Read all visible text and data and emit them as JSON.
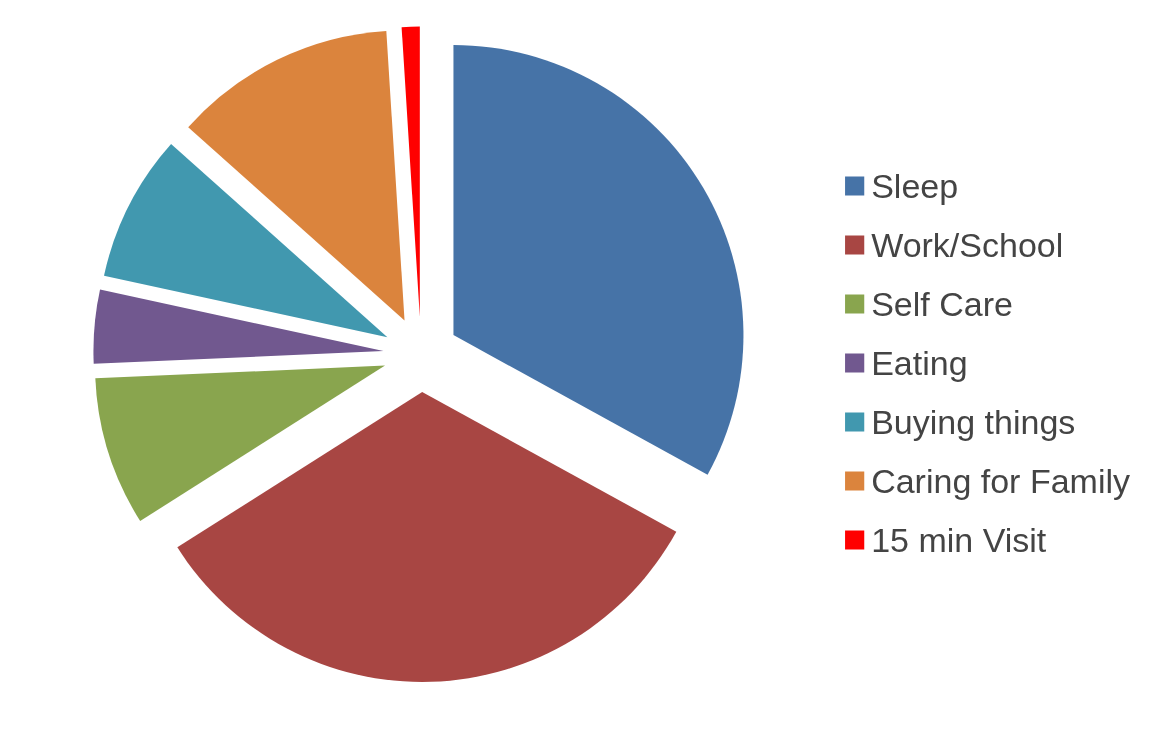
{
  "chart_data": {
    "type": "pie",
    "categories": [
      "Sleep",
      "Work/School",
      "Self Care",
      "Eating",
      "Buying things",
      "Caring for Family",
      "15 min Visit"
    ],
    "values": [
      33.0,
      33.0,
      8.3,
      4.1,
      8.2,
      12.4,
      1.0
    ],
    "colors": [
      "#4673a7",
      "#a84643",
      "#89a54e",
      "#71588f",
      "#4198af",
      "#db843d",
      "#ff0000"
    ],
    "legend": "right"
  }
}
